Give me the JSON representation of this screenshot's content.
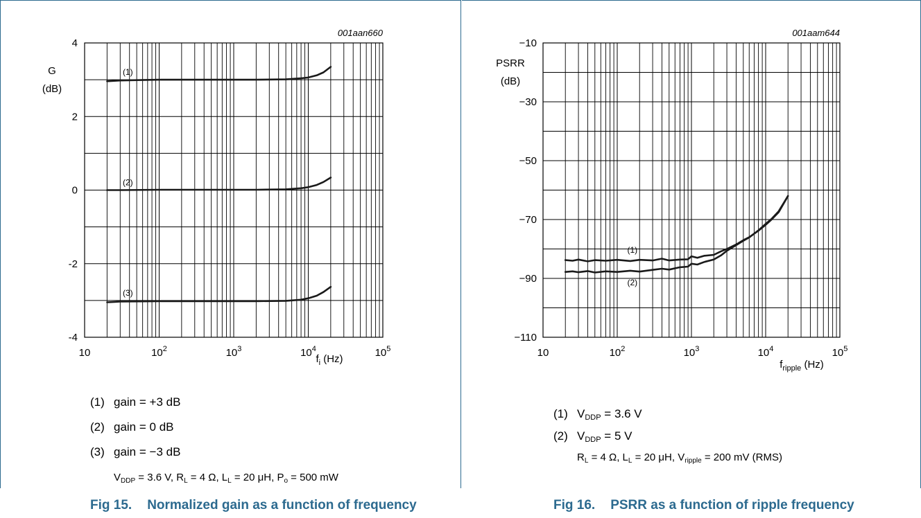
{
  "charts": [
    {
      "id": "gain",
      "figure_no": "Fig 15.",
      "caption": "Normalized gain as a function of frequency",
      "code": "001aan660",
      "legend": [
        {
          "num": "(1)",
          "text": "gain = +3 dB"
        },
        {
          "num": "(2)",
          "text": "gain = 0 dB"
        },
        {
          "num": "(3)",
          "text": "gain = −3 dB"
        }
      ],
      "conditions": [
        {
          "t": "V"
        },
        {
          "sub": "DDP"
        },
        {
          "t": " = 3.6 V, R"
        },
        {
          "sub": "L"
        },
        {
          "t": " = 4 Ω, L"
        },
        {
          "sub": "L"
        },
        {
          "t": " = 20 μH, P"
        },
        {
          "sub": "o"
        },
        {
          "t": " = 500 mW"
        }
      ]
    },
    {
      "id": "psrr",
      "figure_no": "Fig 16.",
      "caption": "PSRR as a function of ripple frequency",
      "code": "001aam644",
      "legend": [
        {
          "num": "(1)",
          "parts": [
            {
              "t": "V"
            },
            {
              "sub": "DDP"
            },
            {
              "t": " = 3.6 V"
            }
          ]
        },
        {
          "num": "(2)",
          "parts": [
            {
              "t": "V"
            },
            {
              "sub": "DDP"
            },
            {
              "t": " = 5 V"
            }
          ]
        }
      ],
      "conditions": [
        {
          "t": "R"
        },
        {
          "sub": "L"
        },
        {
          "t": " = 4 Ω, L"
        },
        {
          "sub": "L"
        },
        {
          "t": " = 20 μH, V"
        },
        {
          "sub": "ripple"
        },
        {
          "t": " = 200 mV (RMS)"
        }
      ]
    }
  ],
  "chart_data": [
    {
      "type": "line",
      "title": "",
      "xscale": "log",
      "xlim": [
        10,
        100000
      ],
      "ylim": [
        -4,
        4
      ],
      "x_ticks": [
        {
          "v": 10,
          "base": "10",
          "exp": ""
        },
        {
          "v": 100,
          "base": "10",
          "exp": "2"
        },
        {
          "v": 1000,
          "base": "10",
          "exp": "3"
        },
        {
          "v": 10000,
          "base": "10",
          "exp": "4"
        },
        {
          "v": 100000,
          "base": "10",
          "exp": "5"
        }
      ],
      "y_ticks": [
        {
          "v": 4,
          "label": "4"
        },
        {
          "v": 2,
          "label": "2"
        },
        {
          "v": 0,
          "label": "0"
        },
        {
          "v": -2,
          "label": "-2"
        },
        {
          "v": -4,
          "label": "-4"
        }
      ],
      "y_grid_step": 1,
      "grid": true,
      "xlabel": {
        "base": "f",
        "sub": "i",
        "unit": " (Hz)"
      },
      "ylabel": [
        "G",
        "(dB)"
      ],
      "series": [
        {
          "label": "(1)",
          "label_at": [
            38,
            3.13
          ],
          "points": [
            [
              20,
              2.96
            ],
            [
              30,
              2.98
            ],
            [
              50,
              2.99
            ],
            [
              100,
              3.0
            ],
            [
              500,
              3.0
            ],
            [
              2000,
              3.0
            ],
            [
              5000,
              3.01
            ],
            [
              8000,
              3.04
            ],
            [
              10000,
              3.06
            ],
            [
              13000,
              3.12
            ],
            [
              16000,
              3.2
            ],
            [
              20000,
              3.35
            ]
          ]
        },
        {
          "label": "(2)",
          "label_at": [
            38,
            0.13
          ],
          "points": [
            [
              20,
              0.0
            ],
            [
              30,
              0.0
            ],
            [
              100,
              0.01
            ],
            [
              500,
              0.01
            ],
            [
              2000,
              0.01
            ],
            [
              5000,
              0.02
            ],
            [
              8000,
              0.05
            ],
            [
              10000,
              0.08
            ],
            [
              13000,
              0.14
            ],
            [
              16000,
              0.22
            ],
            [
              20000,
              0.34
            ]
          ]
        },
        {
          "label": "(3)",
          "label_at": [
            38,
            -2.87
          ],
          "points": [
            [
              20,
              -3.05
            ],
            [
              25,
              -3.04
            ],
            [
              30,
              -3.03
            ],
            [
              100,
              -3.02
            ],
            [
              500,
              -3.02
            ],
            [
              2000,
              -3.02
            ],
            [
              5000,
              -3.01
            ],
            [
              8000,
              -2.98
            ],
            [
              10000,
              -2.94
            ],
            [
              13000,
              -2.87
            ],
            [
              16000,
              -2.77
            ],
            [
              20000,
              -2.63
            ]
          ]
        }
      ]
    },
    {
      "type": "line",
      "title": "",
      "xscale": "log",
      "xlim": [
        10,
        100000
      ],
      "ylim": [
        -110,
        -10
      ],
      "x_ticks": [
        {
          "v": 10,
          "base": "10",
          "exp": ""
        },
        {
          "v": 100,
          "base": "10",
          "exp": "2"
        },
        {
          "v": 1000,
          "base": "10",
          "exp": "3"
        },
        {
          "v": 10000,
          "base": "10",
          "exp": "4"
        },
        {
          "v": 100000,
          "base": "10",
          "exp": "5"
        }
      ],
      "y_ticks": [
        {
          "v": -10,
          "label": "−10"
        },
        {
          "v": -30,
          "label": "−30"
        },
        {
          "v": -50,
          "label": "−50"
        },
        {
          "v": -70,
          "label": "−70"
        },
        {
          "v": -90,
          "label": "−90"
        },
        {
          "v": -110,
          "label": "−110"
        }
      ],
      "y_grid_step": 10,
      "grid": true,
      "xlabel": {
        "base": "f",
        "sub": "ripple",
        "unit": " (Hz)"
      },
      "ylabel": [
        "PSRR",
        "(dB)"
      ],
      "series": [
        {
          "label": "(1)",
          "label_at": [
            160,
            -81.3
          ],
          "points": [
            [
              20,
              -83.8
            ],
            [
              25,
              -84.0
            ],
            [
              30,
              -83.6
            ],
            [
              40,
              -84.2
            ],
            [
              50,
              -83.8
            ],
            [
              70,
              -84.0
            ],
            [
              100,
              -83.7
            ],
            [
              150,
              -84.1
            ],
            [
              200,
              -83.7
            ],
            [
              300,
              -83.9
            ],
            [
              400,
              -83.3
            ],
            [
              500,
              -83.9
            ],
            [
              700,
              -83.6
            ],
            [
              900,
              -83.5
            ],
            [
              1000,
              -82.5
            ],
            [
              1200,
              -83.0
            ],
            [
              1500,
              -82.3
            ],
            [
              2000,
              -82.0
            ],
            [
              2500,
              -80.8
            ],
            [
              3000,
              -80.0
            ],
            [
              4000,
              -78.5
            ],
            [
              5000,
              -77.0
            ],
            [
              6000,
              -76.0
            ],
            [
              8000,
              -73.8
            ],
            [
              10000,
              -71.8
            ],
            [
              12000,
              -70.0
            ],
            [
              15000,
              -67.5
            ],
            [
              20000,
              -62.0
            ]
          ]
        },
        {
          "label": "(2)",
          "label_at": [
            160,
            -92.3
          ],
          "points": [
            [
              20,
              -87.8
            ],
            [
              25,
              -87.6
            ],
            [
              30,
              -87.9
            ],
            [
              40,
              -87.5
            ],
            [
              50,
              -88.0
            ],
            [
              70,
              -87.6
            ],
            [
              100,
              -87.8
            ],
            [
              150,
              -87.4
            ],
            [
              200,
              -87.7
            ],
            [
              300,
              -87.1
            ],
            [
              400,
              -86.7
            ],
            [
              500,
              -87.0
            ],
            [
              700,
              -86.2
            ],
            [
              900,
              -86.0
            ],
            [
              1000,
              -85.0
            ],
            [
              1200,
              -85.3
            ],
            [
              1500,
              -84.4
            ],
            [
              2000,
              -83.6
            ],
            [
              2500,
              -82.2
            ],
            [
              3000,
              -80.6
            ],
            [
              4000,
              -78.7
            ],
            [
              5000,
              -77.2
            ],
            [
              6000,
              -76.1
            ],
            [
              8000,
              -73.7
            ],
            [
              10000,
              -71.5
            ],
            [
              12000,
              -69.8
            ],
            [
              15000,
              -67.2
            ],
            [
              20000,
              -62.0
            ]
          ]
        }
      ]
    }
  ]
}
